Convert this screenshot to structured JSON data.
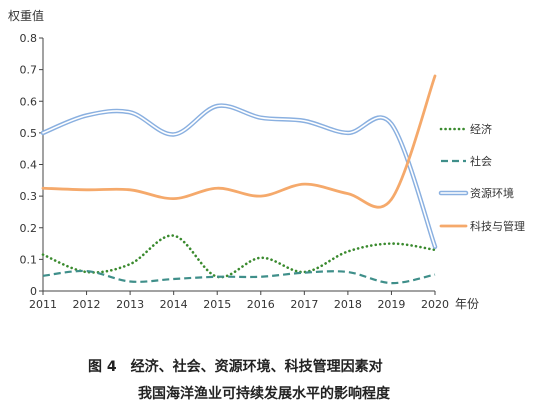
{
  "chart_data": {
    "type": "line",
    "title": "",
    "ylabel": "权重值",
    "xlabel": "年份",
    "x": [
      "2011",
      "2012",
      "2013",
      "2014",
      "2015",
      "2016",
      "2017",
      "2018",
      "2019",
      "2020"
    ],
    "ylim": [
      0,
      0.8
    ],
    "yticks": [
      "0",
      "0.1",
      "0.2",
      "0.3",
      "0.4",
      "0.5",
      "0.6",
      "0.7",
      "0.8"
    ],
    "grid": false,
    "legend_position": "right",
    "series": [
      {
        "name": "经济",
        "color": "#3a8a2e",
        "style": "dotted",
        "values": [
          0.115,
          0.06,
          0.085,
          0.175,
          0.045,
          0.105,
          0.06,
          0.125,
          0.15,
          0.13
        ]
      },
      {
        "name": "社会",
        "color": "#3f8f8a",
        "style": "dashed",
        "values": [
          0.048,
          0.063,
          0.03,
          0.038,
          0.045,
          0.045,
          0.058,
          0.06,
          0.025,
          0.052
        ]
      },
      {
        "name": "资源环境",
        "color": "#8ab0e0",
        "style": "double",
        "values": [
          0.5,
          0.555,
          0.565,
          0.495,
          0.585,
          0.548,
          0.538,
          0.5,
          0.528,
          0.14
        ]
      },
      {
        "name": "科技与管理",
        "color": "#f5a96b",
        "style": "solid",
        "values": [
          0.325,
          0.32,
          0.32,
          0.292,
          0.325,
          0.3,
          0.338,
          0.308,
          0.29,
          0.68
        ]
      }
    ]
  },
  "caption": {
    "line1": "图 4　经济、社会、资源环境、科技管理因素对",
    "line2": "我国海洋渔业可持续发展水平的影响程度"
  }
}
